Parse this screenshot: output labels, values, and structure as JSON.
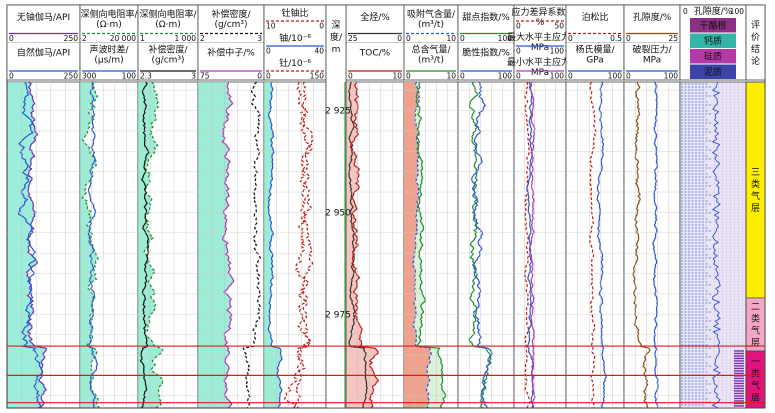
{
  "chart_data": {
    "type": "well-log",
    "depth_label": "深度/m",
    "depth_ticks": [
      "2 925",
      "2 950",
      "2 975"
    ],
    "depth_tick_values": [
      2925,
      2950,
      2975
    ],
    "depth_range": [
      2918,
      2998
    ],
    "tracks": [
      {
        "key": "gr",
        "curves": [
          {
            "label": "无铀伽马/API",
            "min": "0",
            "max": "250",
            "color": "#6a2fb5",
            "dash": false
          },
          {
            "label": "自然伽马/API",
            "min": "0",
            "max": "250",
            "color": "#2a55d6",
            "dash": false
          }
        ]
      },
      {
        "key": "res",
        "curves": [
          {
            "label": "深侧向电阻率/(Ω·m)",
            "min": "2",
            "max": "20 000",
            "color": "#1a8f2a",
            "dash": true
          },
          {
            "label": "声波时差/(μs/m)",
            "min": "300",
            "max": "100",
            "color": "#2a55d6",
            "dash": false
          }
        ]
      },
      {
        "key": "den",
        "curves": [
          {
            "label": "深侧向电阻率/(Ω·m)",
            "min": "1",
            "max": "1 000",
            "color": "#1a8f2a",
            "dash": true
          },
          {
            "label": "补偿密度/(g/cm³)",
            "min": "2.3",
            "max": "3",
            "color": "#111111",
            "dash": false
          }
        ]
      },
      {
        "key": "cnl",
        "curves": [
          {
            "label": "补偿密度/(g/cm³)",
            "min": "2",
            "max": "3",
            "color": "#111111",
            "dash": true
          },
          {
            "label": "补偿中子/%",
            "min": "75",
            "max": "0",
            "color": "#b03ab0",
            "dash": false
          }
        ]
      },
      {
        "key": "th",
        "title": "钍铀比",
        "curves": [
          {
            "label": "钍铀比",
            "min": "10",
            "max": "0",
            "color": "#c01818",
            "dash": true
          },
          {
            "label": "铀/10⁻⁶",
            "min": "0",
            "max": "40",
            "color": "#2a55d6",
            "dash": false
          },
          {
            "label": "钍/10⁻⁶",
            "min": "0",
            "max": "150",
            "color": "#c01818",
            "dash": true
          }
        ]
      },
      {
        "key": "toc",
        "curves": [
          {
            "label": "全烃/%",
            "min": "25",
            "max": "0",
            "color": "#333333",
            "dash": false
          },
          {
            "label": "TOC/%",
            "min": "0",
            "max": "10",
            "color": "#c01818",
            "dash": false
          }
        ]
      },
      {
        "key": "gas",
        "curves": [
          {
            "label": "吸附气含量/(m³/t)",
            "min": "0",
            "max": "10",
            "color": "#2a55d6",
            "dash": true
          },
          {
            "label": "总含气量/(m³/t)",
            "min": "0",
            "max": "10",
            "color": "#1a8f2a",
            "dash": false
          }
        ]
      },
      {
        "key": "brit",
        "curves": [
          {
            "label": "甜点指数/%",
            "min": "0",
            "max": "100",
            "color": "#1a8f2a",
            "dash": false
          },
          {
            "label": "脆性指数/%",
            "min": "0",
            "max": "100",
            "color": "#2a55d6",
            "dash": false
          }
        ]
      },
      {
        "key": "stress",
        "curves": [
          {
            "label": "应力差异系数/%",
            "min": "0",
            "max": "50",
            "color": "#c01818",
            "dash": true
          },
          {
            "label": "最大水平主应力/MPa",
            "min": "0",
            "max": "100",
            "color": "#2a55d6",
            "dash": false
          },
          {
            "label": "最小水平主应力/MPa",
            "min": "0",
            "max": "100",
            "color": "#b03ab0",
            "dash": false
          }
        ]
      },
      {
        "key": "mod",
        "curves": [
          {
            "label": "泊松比",
            "min": "0",
            "max": "0.5",
            "color": "#c01818",
            "dash": true
          },
          {
            "label": "杨氏模量/GPa",
            "min": "0",
            "max": "100",
            "color": "#2a55d6",
            "dash": false
          }
        ]
      },
      {
        "key": "por",
        "curves": [
          {
            "label": "孔隙度/%",
            "min": "0",
            "max": "25",
            "color": "#8a4a10",
            "dash": false
          },
          {
            "label": "破裂压力/MPa",
            "min": "0",
            "max": "100",
            "color": "#2a55d6",
            "dash": false
          }
        ]
      }
    ],
    "lithology": {
      "title": "孔隙度/%",
      "min": "0",
      "max": "100",
      "legend": [
        {
          "label": "干酪根",
          "color": "#8e2f86"
        },
        {
          "label": "钙质",
          "color": "#35b4a8"
        },
        {
          "label": "硅质",
          "color": "#b33aa8"
        },
        {
          "label": "泥质",
          "color": "#3b43a8"
        }
      ]
    },
    "evaluation": {
      "title": "评价结论",
      "zones": [
        {
          "label": "三类气层",
          "top": 2918,
          "bottom": 2971,
          "color": "#ffee00"
        },
        {
          "label": "二类气层",
          "top": 2971,
          "bottom": 2984,
          "color": "#f4a6c8"
        },
        {
          "label": "一类气层",
          "top": 2984,
          "bottom": 2998,
          "color": "#e0147a"
        }
      ]
    },
    "marker_depths": [
      2982.8,
      2990,
      2996.7
    ]
  }
}
